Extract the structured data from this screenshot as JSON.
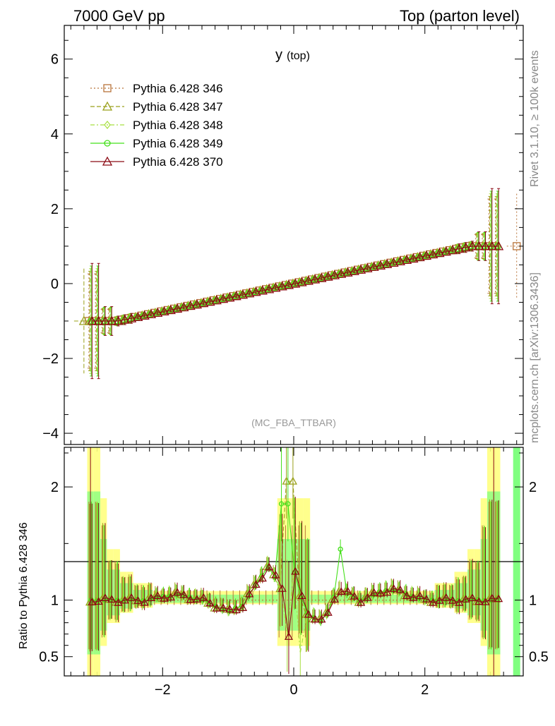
{
  "header": {
    "left": "7000 GeV pp",
    "right": "Top (parton level)"
  },
  "side_labels": {
    "rivet": "Rivet 3.1.10, ≥ 100k events",
    "mcplots": "mcplots.cern.ch [arXiv:1306.3436]"
  },
  "analysis_tag": "(MC_FBA_TTBAR)",
  "chart_data": [
    {
      "type": "line",
      "title": "y",
      "title_sub": "(top)",
      "xlim": [
        -3.5,
        3.5
      ],
      "ylim": [
        -4.3,
        6.9
      ],
      "yticks": [
        -4,
        -2,
        0,
        2,
        4,
        6
      ],
      "ytick_labels": [
        "−4",
        "−2",
        "0",
        "2",
        "4",
        "6"
      ],
      "grid": false,
      "legend_position": "top-left",
      "series": [
        {
          "name": "Pythia 6.428 346",
          "color": "#b8743a",
          "dash": "2,3",
          "marker": "square"
        },
        {
          "name": "Pythia 6.428 347",
          "color": "#9aa01a",
          "dash": "6,3",
          "marker": "triangle"
        },
        {
          "name": "Pythia 6.428 348",
          "color": "#a8e040",
          "dash": "6,3,2,3",
          "marker": "diamond"
        },
        {
          "name": "Pythia 6.428 349",
          "color": "#44e01a",
          "dash": "",
          "marker": "circle"
        },
        {
          "name": "Pythia 6.428 370",
          "color": "#8b0a14",
          "dash": "",
          "marker": "triangle"
        }
      ],
      "curve": {
        "x": [
          -3.1,
          -2.7,
          -2.5,
          2.5,
          2.7,
          3.1
        ],
        "y": [
          -1.0,
          -1.0,
          -0.93,
          0.93,
          1.0,
          1.0
        ],
        "bin_width": 0.1,
        "edge_errors": {
          "outer": 1.4,
          "inner": 0.35
        },
        "extra_points": [
          {
            "series": 0,
            "x": 3.4,
            "y": 1.0
          },
          {
            "series": 1,
            "x": -3.2,
            "y": -1.0
          }
        ]
      }
    },
    {
      "type": "line",
      "ylabel": "Ratio to Pythia 6.428 346",
      "xlim": [
        -3.5,
        3.5
      ],
      "ylim": [
        0.33,
        2.35
      ],
      "yticks": [
        0.5,
        1,
        2
      ],
      "ytick_labels": [
        "0.5",
        "1",
        "2"
      ],
      "xticks": [
        -2,
        0,
        2
      ],
      "xtick_labels": [
        "−2",
        "0",
        "2"
      ],
      "reference": 1,
      "ratio_points": [
        {
          "x": -3.1,
          "y": 1.0
        },
        {
          "x": -2.7,
          "y": 1.0
        },
        {
          "x": -2.3,
          "y": 1.0
        },
        {
          "x": -1.8,
          "y": 1.05
        },
        {
          "x": -1.4,
          "y": 1.0
        },
        {
          "x": -1.0,
          "y": 0.9
        },
        {
          "x": -0.8,
          "y": 0.95
        },
        {
          "x": -0.4,
          "y": 1.3
        },
        {
          "x": -0.2,
          "y": 1.1
        },
        {
          "x": -0.1,
          "y": 0.7
        },
        {
          "x": 0.0,
          "y": 1.25
        },
        {
          "x": 0.15,
          "y": 0.9
        },
        {
          "x": 0.45,
          "y": 0.8
        },
        {
          "x": 0.65,
          "y": 1.1
        },
        {
          "x": 1.0,
          "y": 1.0
        },
        {
          "x": 1.45,
          "y": 1.1
        },
        {
          "x": 2.0,
          "y": 1.0
        },
        {
          "x": 2.5,
          "y": 1.0
        },
        {
          "x": 3.0,
          "y": 1.0
        }
      ],
      "alt_peaks": [
        {
          "series": 3,
          "x": -0.15,
          "y": 1.85
        },
        {
          "series": 1,
          "x": -0.05,
          "y": 2.05
        },
        {
          "series": 2,
          "x": 0.1,
          "y": 0.53
        },
        {
          "series": 3,
          "x": 0.7,
          "y": 1.45
        }
      ]
    }
  ]
}
